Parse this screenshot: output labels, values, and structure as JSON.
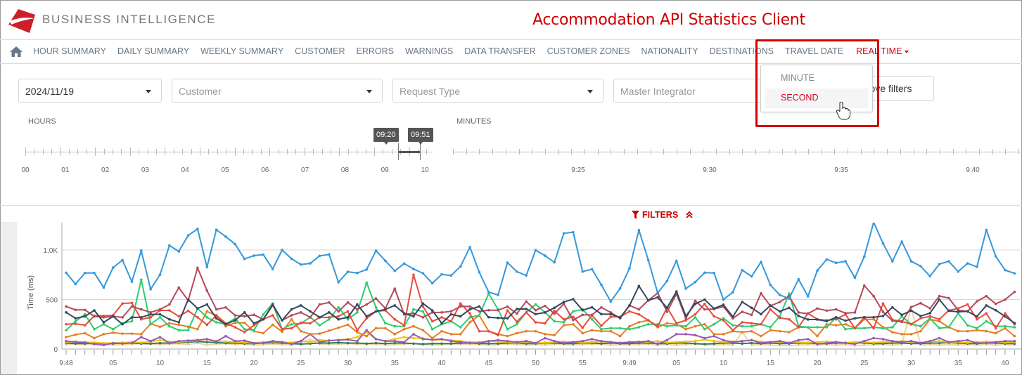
{
  "header": {
    "brand": "BUSINESS INTELLIGENCE",
    "title": "Accommodation API Statistics Client",
    "brand_color": "#cc1f2a",
    "title_color": "#cc0000"
  },
  "nav": {
    "home_icon": "home-icon",
    "items": [
      "HOUR SUMMARY",
      "DAILY SUMMARY",
      "WEEKLY SUMMARY",
      "CUSTOMER",
      "ERRORS",
      "WARNINGS",
      "DATA TRANSFER",
      "CUSTOMER ZONES",
      "NATIONALITY",
      "DESTINATIONS",
      "TRAVEL DATE",
      "REAL TIME"
    ],
    "active": "REAL TIME",
    "dropdown": {
      "items": [
        "MINUTE",
        "SECOND"
      ],
      "hovered": "SECOND"
    }
  },
  "filters": {
    "date": "2024/11/19",
    "customer_placeholder": "Customer",
    "request_type_placeholder": "Request Type",
    "master_integrator_placeholder": "Master Integrator",
    "remove_label": "Remove filters",
    "toggle_label": "FILTERS"
  },
  "hours": {
    "label": "HOURS",
    "ticks": [
      "00",
      "01",
      "02",
      "03",
      "04",
      "05",
      "06",
      "07",
      "08",
      "09",
      "10"
    ],
    "range_start": "09:20",
    "range_end": "09:51"
  },
  "minutes": {
    "label": "MINUTES",
    "ticks": [
      "9:25",
      "9:30",
      "9:35",
      "9:40"
    ]
  },
  "chart_data": {
    "type": "line",
    "ylabel": "Time (ms)",
    "ylim": [
      0,
      1280
    ],
    "yticks": [
      {
        "v": 0,
        "label": "0"
      },
      {
        "v": 500,
        "label": "500"
      },
      {
        "v": 1000,
        "label": "1,0K"
      }
    ],
    "x_start": "9:48:00",
    "x_step_seconds": 1,
    "xtick_labels": [
      "9:48",
      "05",
      "10",
      "15",
      "20",
      "25",
      "30",
      "35",
      "40",
      "45",
      "50",
      "55",
      "9:49",
      "05",
      "10",
      "15",
      "20",
      "25",
      "30",
      "35",
      "40"
    ],
    "grid": "horizontal",
    "legend": "none",
    "series": [
      {
        "color": "#3498db",
        "values": [
          770,
          656,
          768,
          768,
          621,
          822,
          898,
          680,
          993,
          604,
          751,
          1045,
          986,
          1147,
          1213,
          827,
          1204,
          1135,
          1059,
          910,
          943,
          953,
          808,
          1000,
          912,
          853,
          865,
          941,
          955,
          675,
          780,
          768,
          803,
          993,
          891,
          789,
          863,
          808,
          765,
          664,
          754,
          742,
          834,
          1029,
          775,
          575,
          546,
          872,
          782,
          742,
          998,
          943,
          875,
          1168,
          1180,
          782,
          806,
          648,
          480,
          612,
          815,
          1201,
          898,
          565,
          688,
          891,
          610,
          676,
          771,
          768,
          499,
          574,
          797,
          733,
          879,
          648,
          546,
          511,
          704,
          532,
          792,
          905,
          870,
          886,
          719,
          934,
          1320,
          1066,
          886,
          1085,
          886,
          837,
          735,
          858,
          886,
          782,
          865,
          830,
          1203,
          936,
          797,
          764
        ]
      },
      {
        "color": "#34495e",
        "values": [
          370,
          310,
          330,
          390,
          270,
          330,
          250,
          320,
          320,
          350,
          350,
          300,
          270,
          500,
          410,
          450,
          310,
          250,
          290,
          370,
          260,
          300,
          450,
          290,
          400,
          440,
          380,
          320,
          370,
          300,
          320,
          450,
          330,
          380,
          400,
          440,
          360,
          330,
          460,
          390,
          260,
          350,
          330,
          400,
          430,
          321,
          314,
          310,
          404,
          404,
          352,
          369,
          416,
          475,
          503,
          392,
          421,
          352,
          352,
          317,
          440,
          636,
          492,
          522,
          416,
          581,
          333,
          456,
          499,
          409,
          447,
          326,
          475,
          416,
          352,
          440,
          380,
          416,
          333,
          298,
          298,
          281,
          321,
          286,
          310,
          321,
          321,
          333,
          421,
          345,
          388,
          333,
          362,
          499,
          385,
          376,
          380,
          329,
          440,
          392,
          329,
          262
        ]
      },
      {
        "color": "#b5495b",
        "values": [
          430,
          395,
          395,
          330,
          320,
          330,
          320,
          430,
          400,
          370,
          400,
          450,
          620,
          490,
          820,
          590,
          400,
          420,
          340,
          330,
          345,
          300,
          440,
          290,
          340,
          370,
          320,
          450,
          470,
          380,
          470,
          400,
          450,
          510,
          410,
          610,
          350,
          360,
          320,
          370,
          370,
          380,
          430,
          430,
          380,
          392,
          392,
          428,
          357,
          480,
          392,
          435,
          357,
          456,
          293,
          345,
          345,
          421,
          369,
          310,
          440,
          400,
          492,
          565,
          376,
          558,
          310,
          487,
          400,
          404,
          428,
          310,
          376,
          345,
          563,
          435,
          475,
          534,
          369,
          357,
          409,
          388,
          400,
          362,
          369,
          641,
          534,
          376,
          286,
          274,
          423,
          463,
          411,
          534,
          515,
          392,
          380,
          482,
          534,
          456,
          499,
          577
        ]
      },
      {
        "color": "#e74c3c",
        "values": [
          250,
          255,
          240,
          335,
          335,
          340,
          460,
          465,
          300,
          320,
          390,
          390,
          330,
          385,
          320,
          245,
          340,
          260,
          220,
          170,
          240,
          300,
          340,
          200,
          210,
          265,
          260,
          320,
          320,
          330,
          380,
          190,
          310,
          380,
          390,
          300,
          240,
          750,
          430,
          280,
          320,
          280,
          460,
          360,
          180,
          180,
          140,
          390,
          275,
          370,
          270,
          260,
          385,
          300,
          325,
          215,
          340,
          235,
          325,
          325,
          380,
          350,
          290,
          230,
          420,
          260,
          290,
          350,
          455,
          330,
          290,
          190,
          270,
          260,
          250,
          400,
          315,
          300,
          220,
          360,
          300,
          290,
          300,
          350,
          210,
          320,
          210,
          460,
          295,
          280,
          250,
          310,
          330,
          300,
          390,
          410,
          450,
          300,
          360,
          210,
          360,
          250
        ]
      },
      {
        "color": "#2ecc71",
        "values": [
          190,
          280,
          350,
          200,
          250,
          200,
          260,
          280,
          700,
          250,
          320,
          230,
          190,
          190,
          410,
          320,
          270,
          250,
          310,
          200,
          190,
          350,
          460,
          200,
          250,
          260,
          320,
          240,
          300,
          420,
          300,
          370,
          670,
          420,
          260,
          230,
          230,
          400,
          380,
          200,
          250,
          280,
          220,
          320,
          340,
          560,
          400,
          200,
          250,
          370,
          450,
          370,
          280,
          270,
          380,
          400,
          300,
          200,
          210,
          210,
          200,
          220,
          250,
          250,
          230,
          240,
          230,
          320,
          200,
          250,
          310,
          240,
          230,
          230,
          250,
          220,
          330,
          560,
          230,
          220,
          220,
          220,
          320,
          200,
          210,
          210,
          220,
          210,
          220,
          330,
          250,
          230,
          310,
          210,
          220,
          360,
          240,
          210,
          280,
          230,
          230,
          220
        ]
      },
      {
        "color": "#e67e22",
        "values": [
          120,
          145,
          160,
          110,
          150,
          165,
          155,
          155,
          150,
          255,
          225,
          260,
          245,
          225,
          200,
          380,
          340,
          230,
          265,
          265,
          180,
          160,
          245,
          175,
          300,
          180,
          150,
          155,
          185,
          215,
          245,
          170,
          130,
          210,
          210,
          150,
          200,
          230,
          190,
          110,
          180,
          150,
          150,
          270,
          340,
          180,
          150,
          130,
          160,
          180,
          180,
          150,
          140,
          240,
          250,
          160,
          190,
          180,
          180,
          130,
          230,
          270,
          290,
          220,
          260,
          250,
          200,
          230,
          250,
          150,
          150,
          180,
          170,
          180,
          130,
          190,
          180,
          170,
          220,
          220,
          130,
          250,
          240,
          250,
          210,
          300,
          300,
          220,
          170,
          150,
          150,
          180,
          300,
          280,
          220,
          180,
          180,
          190,
          180,
          160,
          210,
          130
        ]
      },
      {
        "color": "#9b59b6",
        "values": [
          80,
          70,
          65,
          50,
          40,
          60,
          55,
          60,
          120,
          80,
          120,
          60,
          80,
          85,
          90,
          100,
          75,
          130,
          80,
          85,
          60,
          60,
          80,
          70,
          50,
          80,
          150,
          70,
          85,
          90,
          95,
          80,
          190,
          100,
          80,
          80,
          70,
          150,
          100,
          95,
          100,
          80,
          70,
          60,
          60,
          80,
          90,
          80,
          70,
          80,
          60,
          110,
          80,
          60,
          70,
          80,
          100,
          80,
          70,
          60,
          70,
          70,
          80,
          50,
          90,
          150,
          150,
          140,
          110,
          130,
          90,
          70,
          80,
          90,
          60,
          70,
          80,
          60,
          90,
          100,
          50,
          60,
          70,
          60,
          50,
          80,
          110,
          100,
          80,
          70,
          80,
          60,
          80,
          110,
          70,
          80,
          90,
          60,
          60,
          70,
          80,
          80
        ]
      },
      {
        "color": "#f1c40f",
        "values": [
          70,
          75,
          70,
          65,
          60,
          60,
          65,
          70,
          65,
          75,
          90,
          75,
          70,
          80,
          85,
          100,
          80,
          75,
          70,
          65,
          60,
          70,
          75,
          70,
          65,
          80,
          70,
          90,
          85,
          90,
          100,
          120,
          170,
          100,
          80,
          100,
          120,
          110,
          110,
          90,
          95,
          90,
          80,
          70,
          70,
          80,
          75,
          70,
          65,
          70,
          60,
          65,
          70,
          75,
          70,
          65,
          70,
          75,
          70,
          65,
          70,
          75,
          70,
          80,
          65,
          70,
          75,
          80,
          95,
          80,
          70,
          75,
          80,
          90,
          75,
          70,
          70,
          65,
          70,
          65,
          70,
          75,
          70,
          65,
          70,
          70,
          65,
          70,
          75,
          80,
          70,
          65,
          75,
          80,
          70,
          70,
          65,
          70,
          75,
          70,
          65,
          70
        ]
      },
      {
        "color": "#2f7d5c",
        "values": [
          60,
          55,
          55,
          60,
          55,
          55,
          60,
          60,
          55,
          55,
          60,
          60,
          65,
          70,
          75,
          70,
          65,
          60,
          60,
          55,
          55,
          60,
          65,
          60,
          55,
          50,
          55,
          60,
          60,
          65,
          60,
          60,
          55,
          60,
          55,
          60,
          60,
          55,
          50,
          55,
          55,
          55,
          60,
          60,
          55,
          55,
          55,
          60,
          60,
          55,
          55,
          60,
          60,
          55,
          55,
          60,
          60,
          55,
          60,
          55,
          55,
          60,
          60,
          55,
          55,
          60,
          60,
          55,
          50,
          55,
          60,
          60,
          55,
          60,
          55,
          60,
          55,
          55,
          60,
          60,
          55,
          55,
          60,
          60,
          65,
          60,
          55,
          55,
          60,
          60,
          55,
          55,
          60,
          60,
          65,
          60,
          55,
          55,
          60,
          60,
          55,
          55
        ]
      },
      {
        "color": "#e8d8a0",
        "values": [
          45,
          50,
          45,
          50,
          45,
          40,
          45,
          50,
          55,
          50,
          45,
          50,
          55,
          45,
          60,
          40,
          50,
          55,
          45,
          50,
          40,
          45,
          50,
          45,
          40,
          70,
          95,
          50,
          45,
          50,
          55,
          50,
          45,
          50,
          40,
          45,
          50,
          55,
          45,
          40,
          45,
          50,
          45,
          50,
          45,
          40,
          45,
          50,
          45,
          40,
          45,
          40,
          50,
          45,
          40,
          45,
          50,
          45,
          40,
          45,
          40,
          45,
          50,
          40,
          45,
          40,
          45,
          50,
          45,
          40,
          45,
          40,
          170,
          40,
          45,
          40,
          35,
          35,
          40,
          45,
          40,
          45,
          40,
          45,
          35,
          40,
          40,
          45,
          40,
          45,
          420,
          40,
          45,
          40,
          45,
          40,
          45,
          40,
          45,
          40,
          45,
          40
        ]
      }
    ]
  }
}
